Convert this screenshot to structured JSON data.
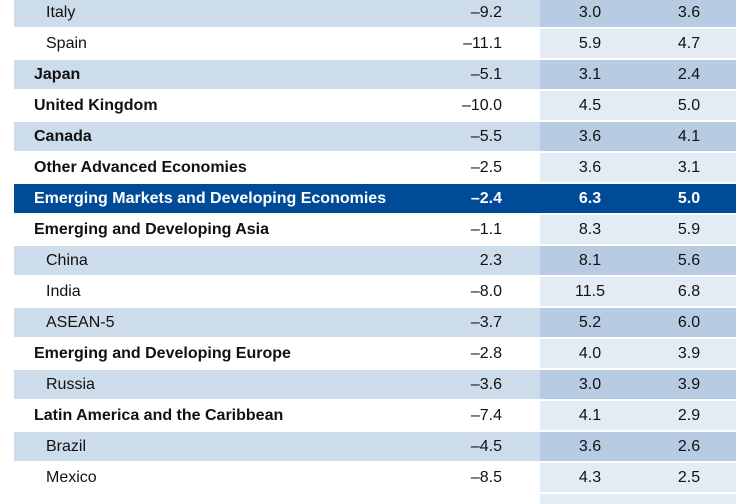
{
  "rows": [
    {
      "label": "Italy",
      "level": 1,
      "values": [
        "–9.2",
        "3.0",
        "3.6"
      ]
    },
    {
      "label": "Spain",
      "level": 1,
      "values": [
        "–11.1",
        "5.9",
        "4.7"
      ]
    },
    {
      "label": "Japan",
      "level": 0,
      "values": [
        "–5.1",
        "3.1",
        "2.4"
      ]
    },
    {
      "label": "United Kingdom",
      "level": 0,
      "values": [
        "–10.0",
        "4.5",
        "5.0"
      ]
    },
    {
      "label": "Canada",
      "level": 0,
      "values": [
        "–5.5",
        "3.6",
        "4.1"
      ]
    },
    {
      "label": "Other Advanced Economies",
      "level": 0,
      "values": [
        "–2.5",
        "3.6",
        "3.1"
      ]
    },
    {
      "label": "Emerging Markets and Developing Economies",
      "level": 0,
      "highlight": true,
      "values": [
        "–2.4",
        "6.3",
        "5.0"
      ]
    },
    {
      "label": "Emerging and Developing Asia",
      "level": 0,
      "values": [
        "–1.1",
        "8.3",
        "5.9"
      ]
    },
    {
      "label": "China",
      "level": 1,
      "values": [
        "2.3",
        "8.1",
        "5.6"
      ]
    },
    {
      "label": "India",
      "level": 1,
      "values": [
        "–8.0",
        "11.5",
        "6.8"
      ]
    },
    {
      "label": "ASEAN-5",
      "level": 1,
      "values": [
        "–3.7",
        "5.2",
        "6.0"
      ]
    },
    {
      "label": "Emerging and Developing Europe",
      "level": 0,
      "values": [
        "–2.8",
        "4.0",
        "3.9"
      ]
    },
    {
      "label": "Russia",
      "level": 1,
      "values": [
        "–3.6",
        "3.0",
        "3.9"
      ]
    },
    {
      "label": "Latin America and the Caribbean",
      "level": 0,
      "values": [
        "–7.4",
        "4.1",
        "2.9"
      ]
    },
    {
      "label": "Brazil",
      "level": 1,
      "values": [
        "–4.5",
        "3.6",
        "2.6"
      ]
    },
    {
      "label": "Mexico",
      "level": 1,
      "values": [
        "–8.5",
        "4.3",
        "2.5"
      ]
    }
  ],
  "colors": {
    "highlight": "#004b98",
    "shade": "#cddcea",
    "forecast_shade": "#b7cbe2",
    "forecast_light": "#e3ebf4"
  }
}
